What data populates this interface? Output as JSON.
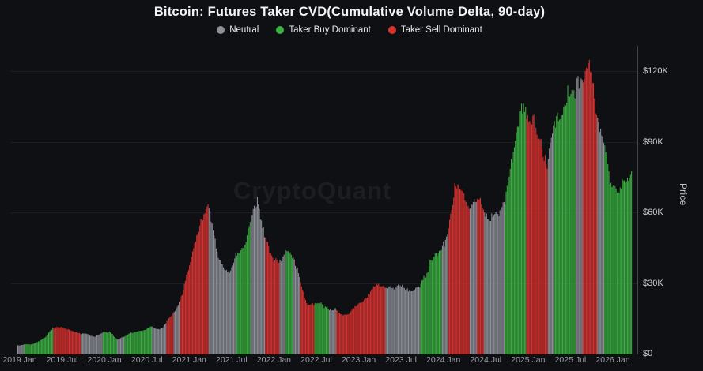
{
  "header": {
    "title": "Bitcoin: Futures Taker CVD(Cumulative Volume Delta, 90-day)"
  },
  "watermark": {
    "text": "CryptoQuant"
  },
  "colors": {
    "background": "#0f1013",
    "grid": "#1c1e24",
    "axis_line": "#41454e",
    "neutral": "#8d9098",
    "buy": "#3bad41",
    "sell": "#d53331"
  },
  "chart_data": {
    "type": "bar",
    "title": "Bitcoin: Futures Taker CVD(Cumulative Volume Delta, 90-day)",
    "xlabel": "",
    "ylabel": "Price",
    "grid": true,
    "legend_position": "top",
    "legend": [
      {
        "label": "Neutral",
        "status": "neutral",
        "color": "#8d9098"
      },
      {
        "label": "Taker Buy Dominant",
        "status": "buy",
        "color": "#3bad41"
      },
      {
        "label": "Taker Sell Dominant",
        "status": "sell",
        "color": "#d53331"
      }
    ],
    "ylim_k": [
      0,
      129
    ],
    "yticks": [
      {
        "label": "$0",
        "value_k": 0
      },
      {
        "label": "$30K",
        "value_k": 30
      },
      {
        "label": "$60K",
        "value_k": 60
      },
      {
        "label": "$90K",
        "value_k": 90
      },
      {
        "label": "$120K",
        "value_k": 120
      }
    ],
    "xticks": [
      {
        "label": "2019 Jan",
        "month_index": 0
      },
      {
        "label": "2019 Jul",
        "month_index": 6
      },
      {
        "label": "2020 Jan",
        "month_index": 12
      },
      {
        "label": "2020 Jul",
        "month_index": 18
      },
      {
        "label": "2021 Jan",
        "month_index": 24
      },
      {
        "label": "2021 Jul",
        "month_index": 30
      },
      {
        "label": "2022 Jan",
        "month_index": 36
      },
      {
        "label": "2022 Jul",
        "month_index": 42
      },
      {
        "label": "2023 Jan",
        "month_index": 48
      },
      {
        "label": "2023 Jul",
        "month_index": 54
      },
      {
        "label": "2024 Jan",
        "month_index": 60
      },
      {
        "label": "2024 Jul",
        "month_index": 66
      },
      {
        "label": "2025 Jan",
        "month_index": 72
      },
      {
        "label": "2025 Jul",
        "month_index": 78
      },
      {
        "label": "2026 Jan",
        "month_index": 84
      }
    ],
    "status_colors": {
      "neutral": "#8d9098",
      "buy": "#3bad41",
      "sell": "#d53331"
    },
    "monthly_series_note": "each entry: [month, BTC price in $K, taker CVD status]",
    "monthly_series": [
      [
        "2019-01",
        3.5,
        "neutral"
      ],
      [
        "2019-02",
        3.7,
        "buy"
      ],
      [
        "2019-03",
        4.0,
        "buy"
      ],
      [
        "2019-04",
        5.2,
        "buy"
      ],
      [
        "2019-05",
        7.3,
        "buy"
      ],
      [
        "2019-06",
        11.5,
        "sell"
      ],
      [
        "2019-07",
        11.0,
        "sell"
      ],
      [
        "2019-08",
        10.2,
        "sell"
      ],
      [
        "2019-09",
        9.2,
        "sell"
      ],
      [
        "2019-10",
        8.3,
        "neutral"
      ],
      [
        "2019-11",
        7.8,
        "neutral"
      ],
      [
        "2019-12",
        7.2,
        "neutral"
      ],
      [
        "2020-01",
        8.6,
        "buy"
      ],
      [
        "2020-02",
        9.6,
        "buy"
      ],
      [
        "2020-03",
        5.8,
        "neutral"
      ],
      [
        "2020-04",
        7.0,
        "buy"
      ],
      [
        "2020-05",
        9.2,
        "buy"
      ],
      [
        "2020-06",
        9.4,
        "buy"
      ],
      [
        "2020-07",
        9.8,
        "buy"
      ],
      [
        "2020-08",
        11.6,
        "neutral"
      ],
      [
        "2020-09",
        10.6,
        "neutral"
      ],
      [
        "2020-10",
        12.8,
        "sell"
      ],
      [
        "2020-11",
        16.5,
        "neutral"
      ],
      [
        "2020-12",
        23.0,
        "sell"
      ],
      [
        "2021-01",
        34.0,
        "sell"
      ],
      [
        "2021-02",
        47.0,
        "sell"
      ],
      [
        "2021-03",
        56.0,
        "sell"
      ],
      [
        "2021-04",
        61.0,
        "neutral"
      ],
      [
        "2021-05",
        48.0,
        "neutral"
      ],
      [
        "2021-06",
        35.0,
        "neutral"
      ],
      [
        "2021-07",
        33.0,
        "neutral"
      ],
      [
        "2021-08",
        44.0,
        "buy"
      ],
      [
        "2021-09",
        47.0,
        "buy"
      ],
      [
        "2021-10",
        58.0,
        "neutral"
      ],
      [
        "2021-11",
        64.0,
        "neutral"
      ],
      [
        "2021-12",
        49.0,
        "sell"
      ],
      [
        "2022-01",
        41.0,
        "sell"
      ],
      [
        "2022-02",
        39.0,
        "neutral"
      ],
      [
        "2022-03",
        43.0,
        "buy"
      ],
      [
        "2022-04",
        41.0,
        "neutral"
      ],
      [
        "2022-05",
        30.0,
        "sell"
      ],
      [
        "2022-06",
        21.0,
        "sell"
      ],
      [
        "2022-07",
        21.5,
        "buy"
      ],
      [
        "2022-08",
        22.0,
        "buy"
      ],
      [
        "2022-09",
        19.0,
        "neutral"
      ],
      [
        "2022-10",
        19.0,
        "sell"
      ],
      [
        "2022-11",
        16.5,
        "sell"
      ],
      [
        "2022-12",
        16.8,
        "sell"
      ],
      [
        "2023-01",
        20.0,
        "sell"
      ],
      [
        "2023-02",
        23.5,
        "sell"
      ],
      [
        "2023-03",
        26.5,
        "sell"
      ],
      [
        "2023-04",
        29.0,
        "sell"
      ],
      [
        "2023-05",
        27.0,
        "neutral"
      ],
      [
        "2023-06",
        27.5,
        "neutral"
      ],
      [
        "2023-07",
        29.5,
        "neutral"
      ],
      [
        "2023-08",
        27.5,
        "neutral"
      ],
      [
        "2023-09",
        26.5,
        "neutral"
      ],
      [
        "2023-10",
        30.0,
        "buy"
      ],
      [
        "2023-11",
        36.0,
        "buy"
      ],
      [
        "2023-12",
        42.0,
        "buy"
      ],
      [
        "2024-01",
        44.0,
        "neutral"
      ],
      [
        "2024-02",
        51.0,
        "sell"
      ],
      [
        "2024-03",
        68.0,
        "sell"
      ],
      [
        "2024-04",
        67.0,
        "sell"
      ],
      [
        "2024-05",
        64.0,
        "neutral"
      ],
      [
        "2024-06",
        67.0,
        "sell"
      ],
      [
        "2024-07",
        62.0,
        "neutral"
      ],
      [
        "2024-08",
        60.0,
        "neutral"
      ],
      [
        "2024-09",
        58.0,
        "neutral"
      ],
      [
        "2024-10",
        65.0,
        "buy"
      ],
      [
        "2024-11",
        85.0,
        "buy"
      ],
      [
        "2024-12",
        99.0,
        "buy"
      ],
      [
        "2025-01",
        103.0,
        "sell"
      ],
      [
        "2025-02",
        96.0,
        "sell"
      ],
      [
        "2025-03",
        86.0,
        "sell"
      ],
      [
        "2025-04",
        80.0,
        "neutral"
      ],
      [
        "2025-05",
        100.0,
        "buy"
      ],
      [
        "2025-06",
        106.0,
        "buy"
      ],
      [
        "2025-07",
        114.0,
        "buy"
      ],
      [
        "2025-08",
        119.0,
        "neutral"
      ],
      [
        "2025-09",
        112.0,
        "sell"
      ],
      [
        "2025-10",
        119.0,
        "sell"
      ],
      [
        "2025-11",
        100.0,
        "neutral"
      ],
      [
        "2025-12",
        88.0,
        "buy"
      ],
      [
        "2026-01",
        70.0,
        "buy"
      ],
      [
        "2026-02",
        72.0,
        "buy"
      ],
      [
        "2026-03",
        76.0,
        "buy"
      ]
    ]
  }
}
